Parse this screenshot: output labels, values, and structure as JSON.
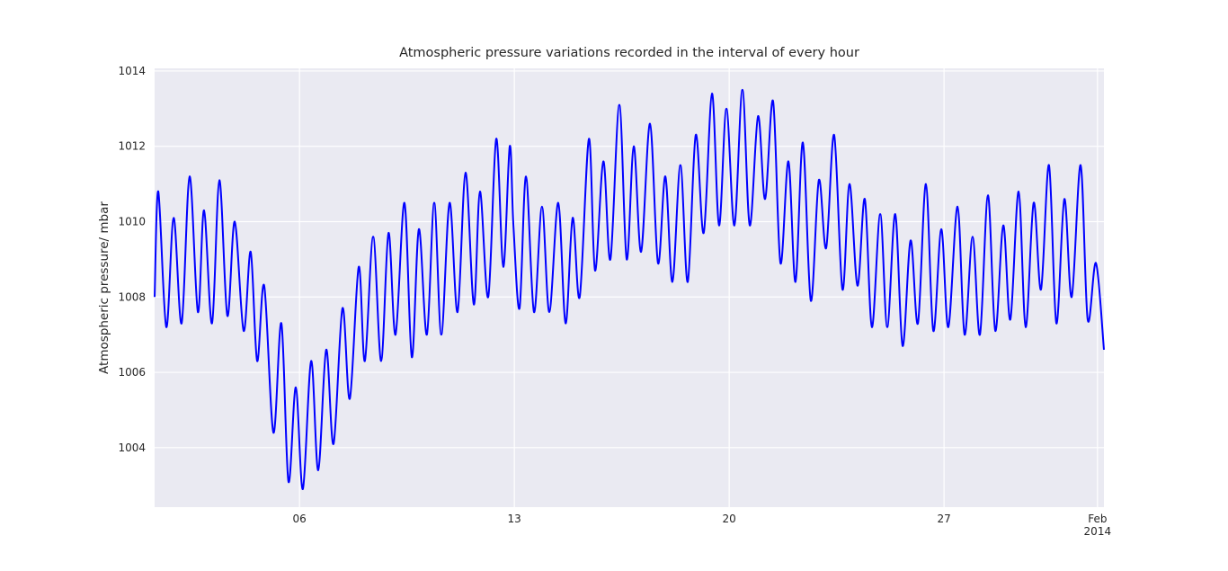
{
  "chart_data": {
    "type": "line",
    "title": "Atmospheric pressure variations recorded in the interval of every hour",
    "y_label": "Atmospheric pressure/ mbar",
    "x": [
      1.28,
      1.4,
      1.66,
      1.9,
      2.16,
      2.42,
      2.69,
      2.89,
      3.15,
      3.39,
      3.65,
      3.89,
      4.18,
      4.41,
      4.62,
      4.85,
      5.15,
      5.41,
      5.64,
      5.88,
      6.11,
      6.38,
      6.61,
      6.87,
      7.11,
      7.4,
      7.64,
      7.93,
      8.13,
      8.4,
      8.66,
      8.9,
      9.13,
      9.42,
      9.66,
      9.89,
      10.15,
      10.39,
      10.62,
      10.89,
      11.15,
      11.41,
      11.68,
      11.88,
      12.15,
      12.41,
      12.64,
      12.85,
      12.97,
      13.17,
      13.38,
      13.64,
      13.9,
      14.14,
      14.43,
      14.67,
      14.9,
      15.13,
      15.43,
      15.63,
      15.9,
      16.13,
      16.42,
      16.66,
      16.89,
      17.13,
      17.42,
      17.68,
      17.92,
      18.15,
      18.41,
      18.65,
      18.91,
      19.17,
      19.44,
      19.67,
      19.91,
      20.17,
      20.43,
      20.67,
      20.94,
      21.17,
      21.43,
      21.67,
      21.93,
      22.16,
      22.4,
      22.66,
      22.92,
      23.16,
      23.42,
      23.69,
      23.92,
      24.18,
      24.42,
      24.65,
      24.92,
      25.15,
      25.41,
      25.65,
      25.91,
      26.15,
      26.41,
      26.65,
      26.91,
      27.14,
      27.44,
      27.67,
      27.93,
      28.17,
      28.43,
      28.67,
      28.93,
      29.16,
      29.43,
      29.66,
      29.92,
      30.16,
      30.42,
      30.66,
      30.92,
      31.16,
      31.45,
      31.68,
      31.95,
      32.21
    ],
    "series": [
      {
        "color": "#0000ff",
        "values": [
          1008.0,
          1010.8,
          1007.2,
          1010.1,
          1007.3,
          1011.2,
          1007.6,
          1010.3,
          1007.3,
          1011.1,
          1007.5,
          1010.0,
          1007.1,
          1009.2,
          1006.3,
          1008.3,
          1004.4,
          1007.3,
          1003.1,
          1005.6,
          1002.9,
          1006.3,
          1003.4,
          1006.6,
          1004.1,
          1007.7,
          1005.3,
          1008.8,
          1006.3,
          1009.6,
          1006.3,
          1009.7,
          1007.0,
          1010.5,
          1006.4,
          1009.8,
          1007.0,
          1010.5,
          1007.0,
          1010.5,
          1007.6,
          1011.3,
          1007.8,
          1010.8,
          1008.0,
          1012.2,
          1008.8,
          1012.0,
          1009.9,
          1007.7,
          1011.2,
          1007.6,
          1010.4,
          1007.6,
          1010.5,
          1007.3,
          1010.1,
          1008.0,
          1012.2,
          1008.7,
          1011.6,
          1009.0,
          1013.1,
          1009.0,
          1012.0,
          1009.2,
          1012.6,
          1008.9,
          1011.2,
          1008.4,
          1011.5,
          1008.4,
          1012.3,
          1009.7,
          1013.4,
          1009.9,
          1013.0,
          1009.9,
          1013.5,
          1009.9,
          1012.8,
          1010.6,
          1013.2,
          1008.9,
          1011.6,
          1008.4,
          1012.1,
          1007.9,
          1011.1,
          1009.3,
          1012.3,
          1008.2,
          1011.0,
          1008.3,
          1010.6,
          1007.2,
          1010.2,
          1007.2,
          1010.2,
          1006.7,
          1009.5,
          1007.3,
          1011.0,
          1007.1,
          1009.8,
          1007.2,
          1010.4,
          1007.0,
          1009.6,
          1007.0,
          1010.7,
          1007.1,
          1009.9,
          1007.4,
          1010.8,
          1007.2,
          1010.5,
          1008.2,
          1011.5,
          1007.3,
          1010.6,
          1008.0,
          1011.5,
          1007.4,
          1008.9,
          1006.6
        ]
      }
    ],
    "xlim": [
      1.28,
      32.21
    ],
    "xticks": [
      {
        "value": 6,
        "label": "06"
      },
      {
        "value": 13,
        "label": "13"
      },
      {
        "value": 20,
        "label": "20"
      },
      {
        "value": 27,
        "label": "27"
      },
      {
        "value": 32,
        "label": "Feb\n2014"
      }
    ],
    "ylim": [
      1002.42,
      1014.07
    ],
    "yticks": [
      1004,
      1006,
      1008,
      1010,
      1012,
      1014
    ],
    "grid": true
  }
}
